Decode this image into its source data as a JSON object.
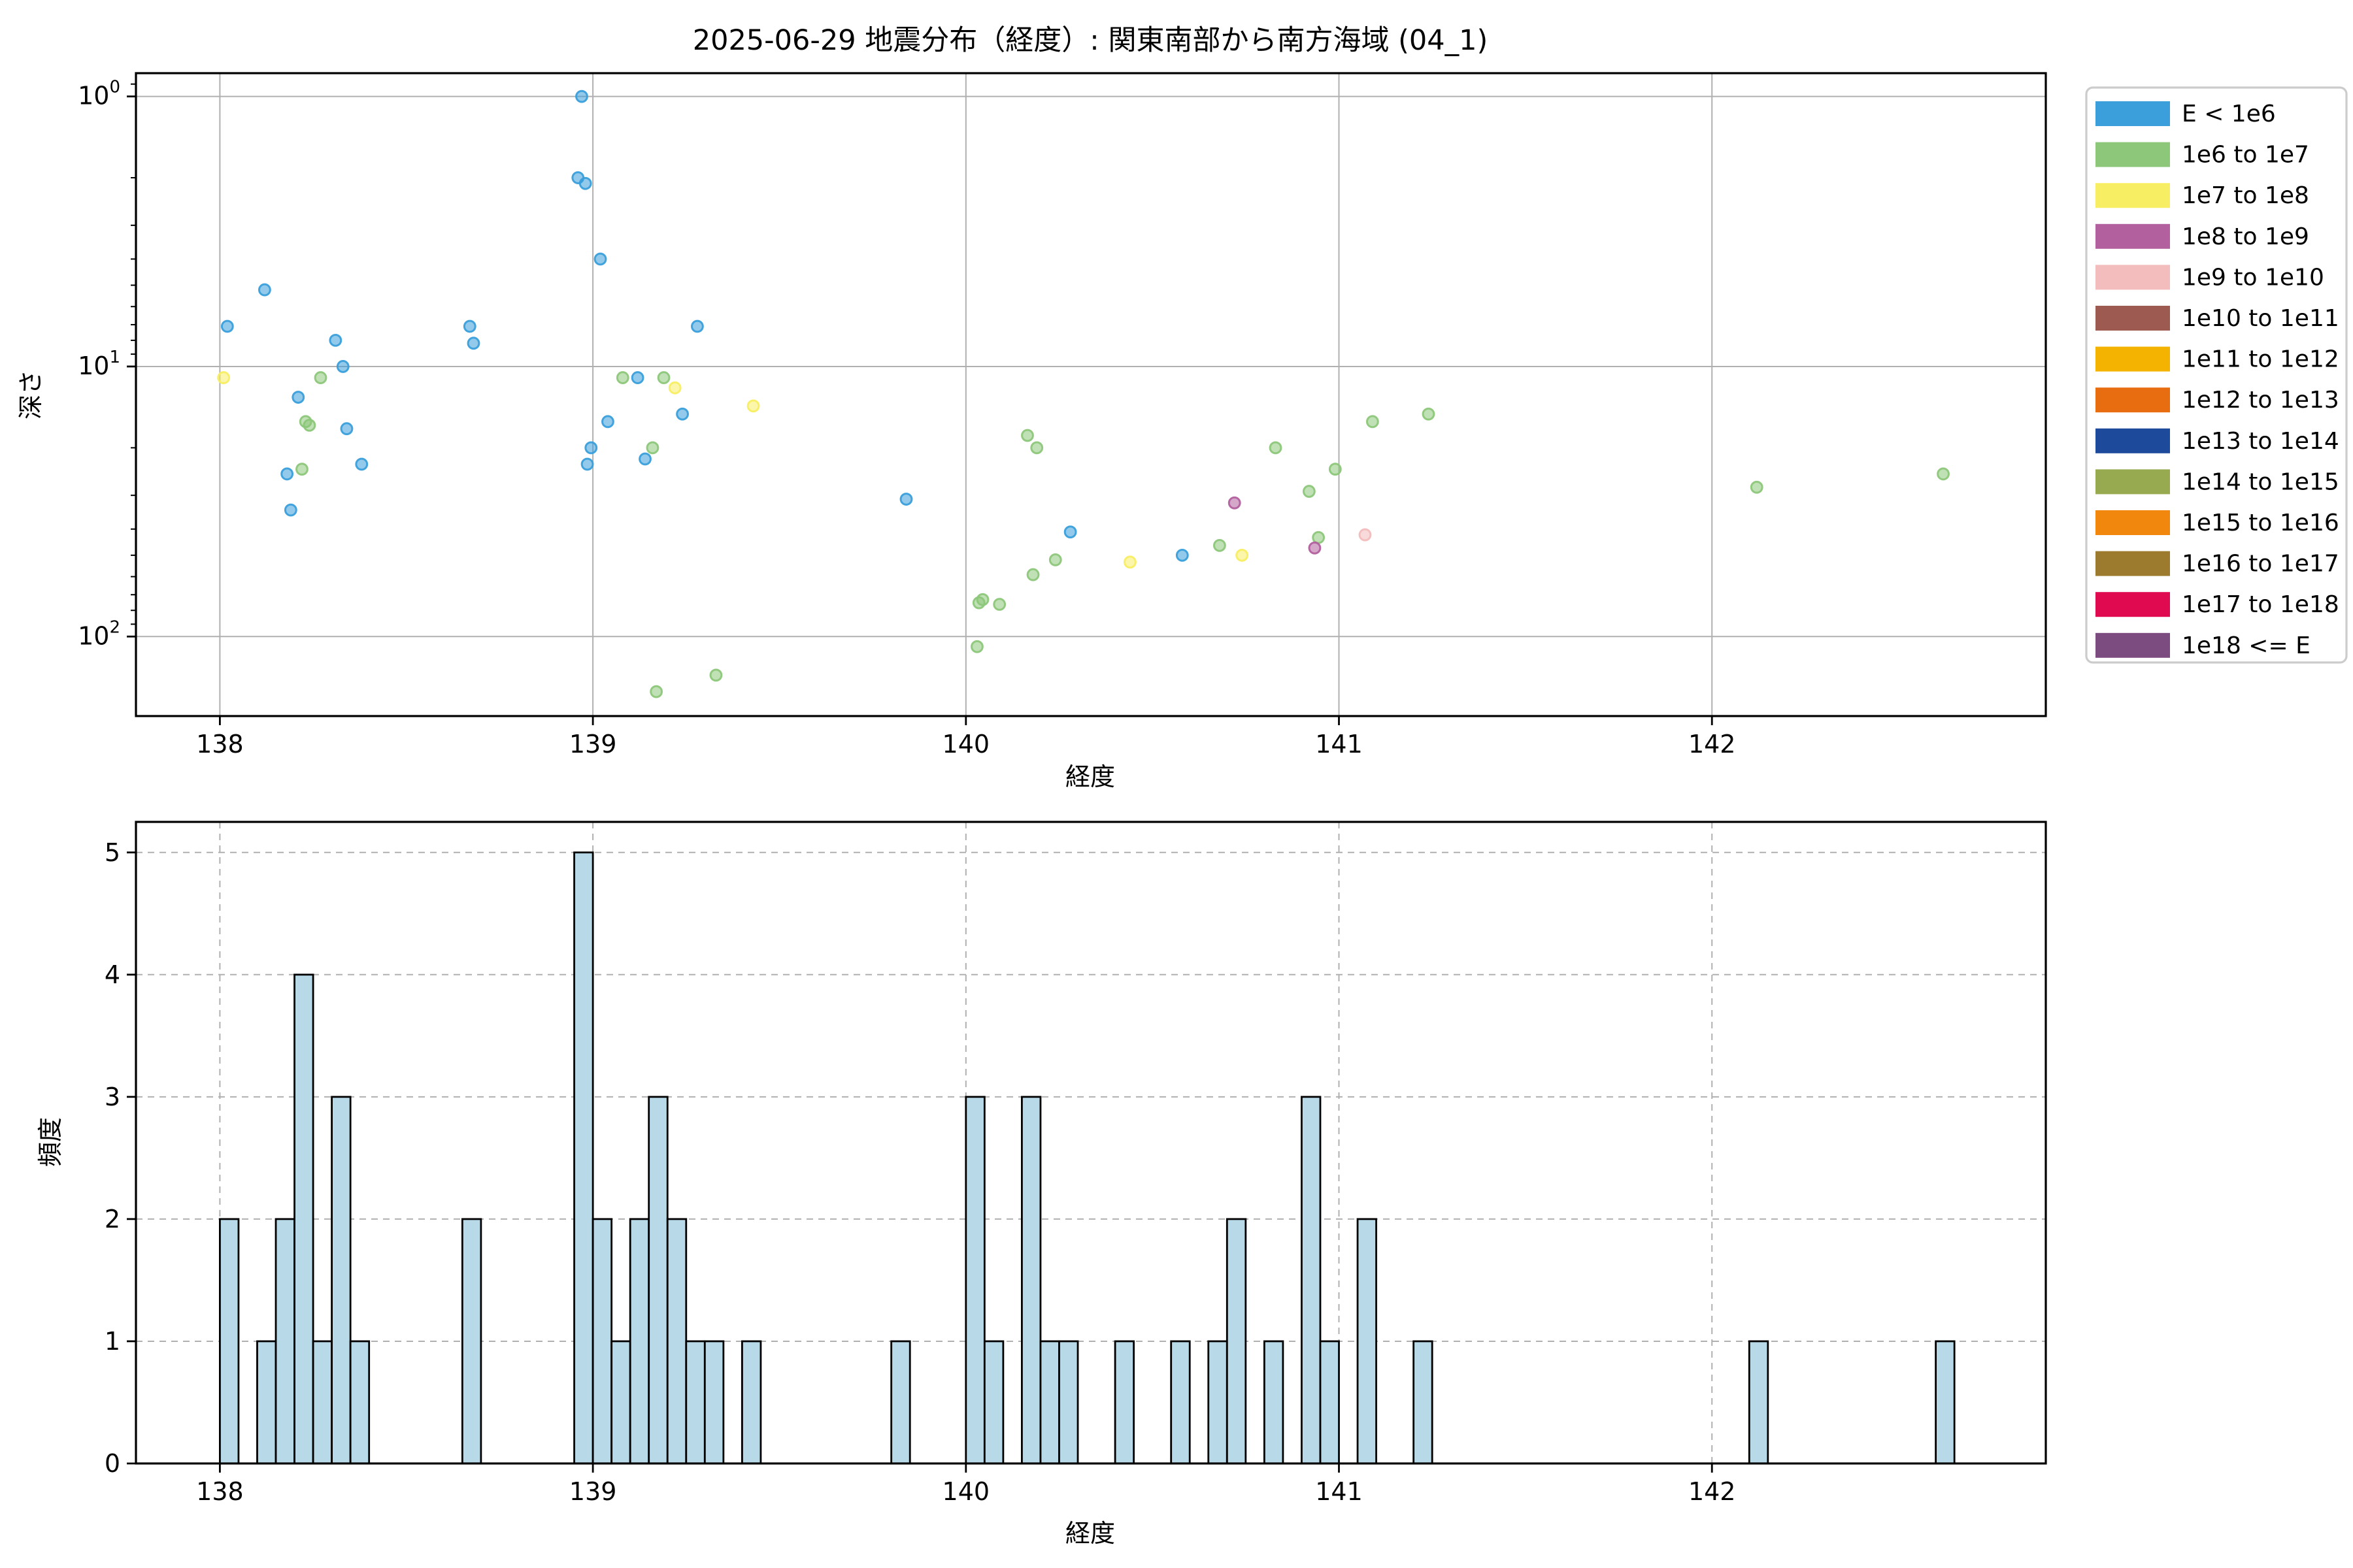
{
  "figure": {
    "background": "#ffffff",
    "title": "2025-06-29 地震分布（経度）: 関東南部から南方海域 (04_1)"
  },
  "colors": {
    "grid": "#b0b0b0",
    "spine": "#000000",
    "tick": "#000000",
    "hist_fill": "#b7d9e8",
    "hist_edge": "#000000",
    "legend_border": "#cccccc",
    "legend_bg": "#ffffff"
  },
  "legend": {
    "entries": [
      {
        "label": "E < 1e6",
        "color": "#3a9fdb"
      },
      {
        "label": "1e6 to 1e7",
        "color": "#8dc77a"
      },
      {
        "label": "1e7 to 1e8",
        "color": "#f8ee63"
      },
      {
        "label": "1e8 to 1e9",
        "color": "#b2609e"
      },
      {
        "label": "1e9 to 1e10",
        "color": "#f3bcbd"
      },
      {
        "label": "1e10 to 1e11",
        "color": "#9d5a50"
      },
      {
        "label": "1e11 to 1e12",
        "color": "#f4b300"
      },
      {
        "label": "1e12 to 1e13",
        "color": "#e86c10"
      },
      {
        "label": "1e13 to 1e14",
        "color": "#1e4a9b"
      },
      {
        "label": "1e14 to 1e15",
        "color": "#97aa4f"
      },
      {
        "label": "1e15 to 1e16",
        "color": "#f1870c"
      },
      {
        "label": "1e16 to 1e17",
        "color": "#9c7b2e"
      },
      {
        "label": "1e17 to 1e18",
        "color": "#e00a50"
      },
      {
        "label": "1e18 <= E",
        "color": "#7c4b80"
      }
    ]
  },
  "chart_data": [
    {
      "type": "scatter",
      "title": "2025-06-29 地震分布（経度）: 関東南部から南方海域 (04_1)",
      "xlabel": "経度",
      "ylabel": "深さ",
      "xlim": [
        137.775,
        142.895
      ],
      "ylim": [
        0.82,
        197.0
      ],
      "y_scale": "log",
      "y_inverted": true,
      "x_ticks": [
        138,
        139,
        140,
        141,
        142
      ],
      "y_ticks": [
        1,
        10,
        100
      ],
      "y_minor_ticks": [
        0.9,
        2,
        3,
        4,
        5,
        6,
        7,
        8,
        9,
        20,
        30,
        40,
        50,
        60,
        70,
        80,
        90
      ],
      "grid": "solid",
      "legend_position": "outside-right",
      "point_format": [
        "longitude_deg",
        "depth_km",
        "energy_class_index"
      ],
      "points": [
        [
          138.02,
          7.1,
          0
        ],
        [
          138.01,
          11.0,
          2
        ],
        [
          138.12,
          5.2,
          0
        ],
        [
          138.18,
          25,
          0
        ],
        [
          138.19,
          34,
          0
        ],
        [
          138.21,
          13,
          0
        ],
        [
          138.22,
          24,
          1
        ],
        [
          138.23,
          16,
          1
        ],
        [
          138.24,
          16.5,
          1
        ],
        [
          138.27,
          11,
          1
        ],
        [
          138.31,
          8,
          0
        ],
        [
          138.33,
          10,
          0
        ],
        [
          138.34,
          17,
          0
        ],
        [
          138.38,
          23,
          0
        ],
        [
          138.67,
          7.1,
          0
        ],
        [
          138.68,
          8.2,
          0
        ],
        [
          138.97,
          1.0,
          0
        ],
        [
          138.96,
          2.0,
          0
        ],
        [
          138.98,
          2.1,
          0
        ],
        [
          138.985,
          23,
          0
        ],
        [
          138.995,
          20,
          0
        ],
        [
          139.02,
          4.0,
          0
        ],
        [
          139.04,
          16,
          0
        ],
        [
          139.08,
          11,
          1
        ],
        [
          139.12,
          11,
          0
        ],
        [
          139.14,
          22,
          0
        ],
        [
          139.16,
          20,
          1
        ],
        [
          139.17,
          160,
          1
        ],
        [
          139.19,
          11,
          1
        ],
        [
          139.22,
          12,
          2
        ],
        [
          139.24,
          15,
          0
        ],
        [
          139.28,
          7.1,
          0
        ],
        [
          139.33,
          139,
          1
        ],
        [
          139.43,
          14,
          2
        ],
        [
          139.84,
          31,
          0
        ],
        [
          140.03,
          109,
          1
        ],
        [
          140.035,
          75,
          1
        ],
        [
          140.045,
          73,
          1
        ],
        [
          140.09,
          76,
          1
        ],
        [
          140.165,
          18,
          1
        ],
        [
          140.19,
          20,
          1
        ],
        [
          140.18,
          59,
          1
        ],
        [
          140.24,
          52,
          1
        ],
        [
          140.28,
          41,
          0
        ],
        [
          140.44,
          53,
          2
        ],
        [
          140.58,
          50,
          0
        ],
        [
          140.68,
          46,
          1
        ],
        [
          140.72,
          32,
          3
        ],
        [
          140.74,
          50,
          2
        ],
        [
          140.83,
          20,
          1
        ],
        [
          140.92,
          29,
          1
        ],
        [
          140.945,
          43,
          1
        ],
        [
          140.935,
          47,
          3
        ],
        [
          140.99,
          24,
          1
        ],
        [
          141.07,
          42,
          4
        ],
        [
          141.09,
          16,
          1
        ],
        [
          141.24,
          15,
          1
        ],
        [
          142.12,
          28,
          1
        ],
        [
          142.62,
          25,
          1
        ]
      ]
    },
    {
      "type": "histogram",
      "xlabel": "経度",
      "ylabel": "頻度",
      "xlim": [
        137.775,
        142.895
      ],
      "ylim": [
        0,
        5.25
      ],
      "x_ticks": [
        138,
        139,
        140,
        141,
        142
      ],
      "y_ticks": [
        0,
        1,
        2,
        3,
        4,
        5
      ],
      "grid": "dashed",
      "bin_width": 0.05,
      "bar_format": [
        "bin_left_longitude",
        "count"
      ],
      "bars": [
        [
          138.0,
          2
        ],
        [
          138.1,
          1
        ],
        [
          138.15,
          2
        ],
        [
          138.2,
          4
        ],
        [
          138.25,
          1
        ],
        [
          138.3,
          3
        ],
        [
          138.35,
          1
        ],
        [
          138.65,
          2
        ],
        [
          138.95,
          5
        ],
        [
          139.0,
          2
        ],
        [
          139.05,
          1
        ],
        [
          139.1,
          2
        ],
        [
          139.15,
          3
        ],
        [
          139.2,
          2
        ],
        [
          139.25,
          1
        ],
        [
          139.3,
          1
        ],
        [
          139.4,
          1
        ],
        [
          139.8,
          1
        ],
        [
          140.0,
          3
        ],
        [
          140.05,
          1
        ],
        [
          140.15,
          3
        ],
        [
          140.2,
          1
        ],
        [
          140.25,
          1
        ],
        [
          140.4,
          1
        ],
        [
          140.55,
          1
        ],
        [
          140.65,
          1
        ],
        [
          140.7,
          2
        ],
        [
          140.8,
          1
        ],
        [
          140.9,
          3
        ],
        [
          140.95,
          1
        ],
        [
          141.05,
          2
        ],
        [
          141.2,
          1
        ],
        [
          142.1,
          1
        ],
        [
          142.6,
          1
        ]
      ]
    }
  ]
}
